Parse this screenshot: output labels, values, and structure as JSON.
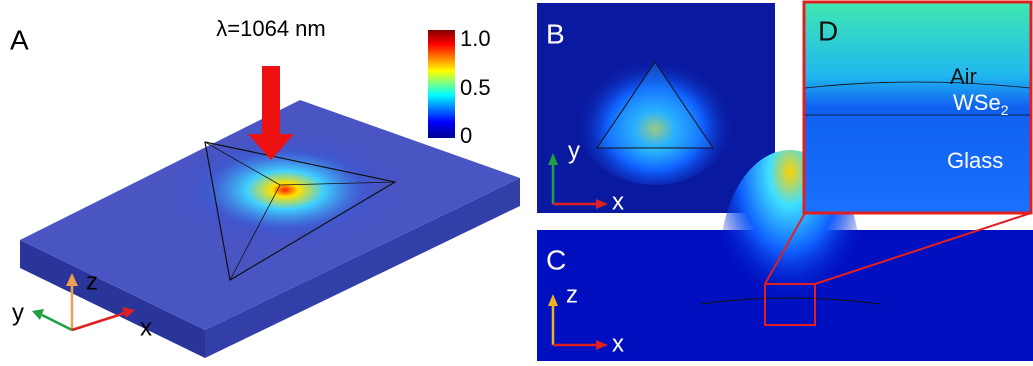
{
  "panels": [
    {
      "label": "A",
      "wavelength": "λ=1064 nm",
      "colorbar_ticks": [
        "1.0",
        "0.5",
        "0"
      ],
      "axes": [
        "z",
        "y",
        "x"
      ]
    },
    {
      "label": "B",
      "axes": [
        "y",
        "x"
      ]
    },
    {
      "label": "C",
      "axes": [
        "z",
        "x"
      ]
    },
    {
      "label": "D",
      "layers": [
        {
          "text": "Air"
        },
        {
          "text": "WSe",
          "subscript": "2"
        },
        {
          "text": "Glass"
        }
      ]
    }
  ]
}
